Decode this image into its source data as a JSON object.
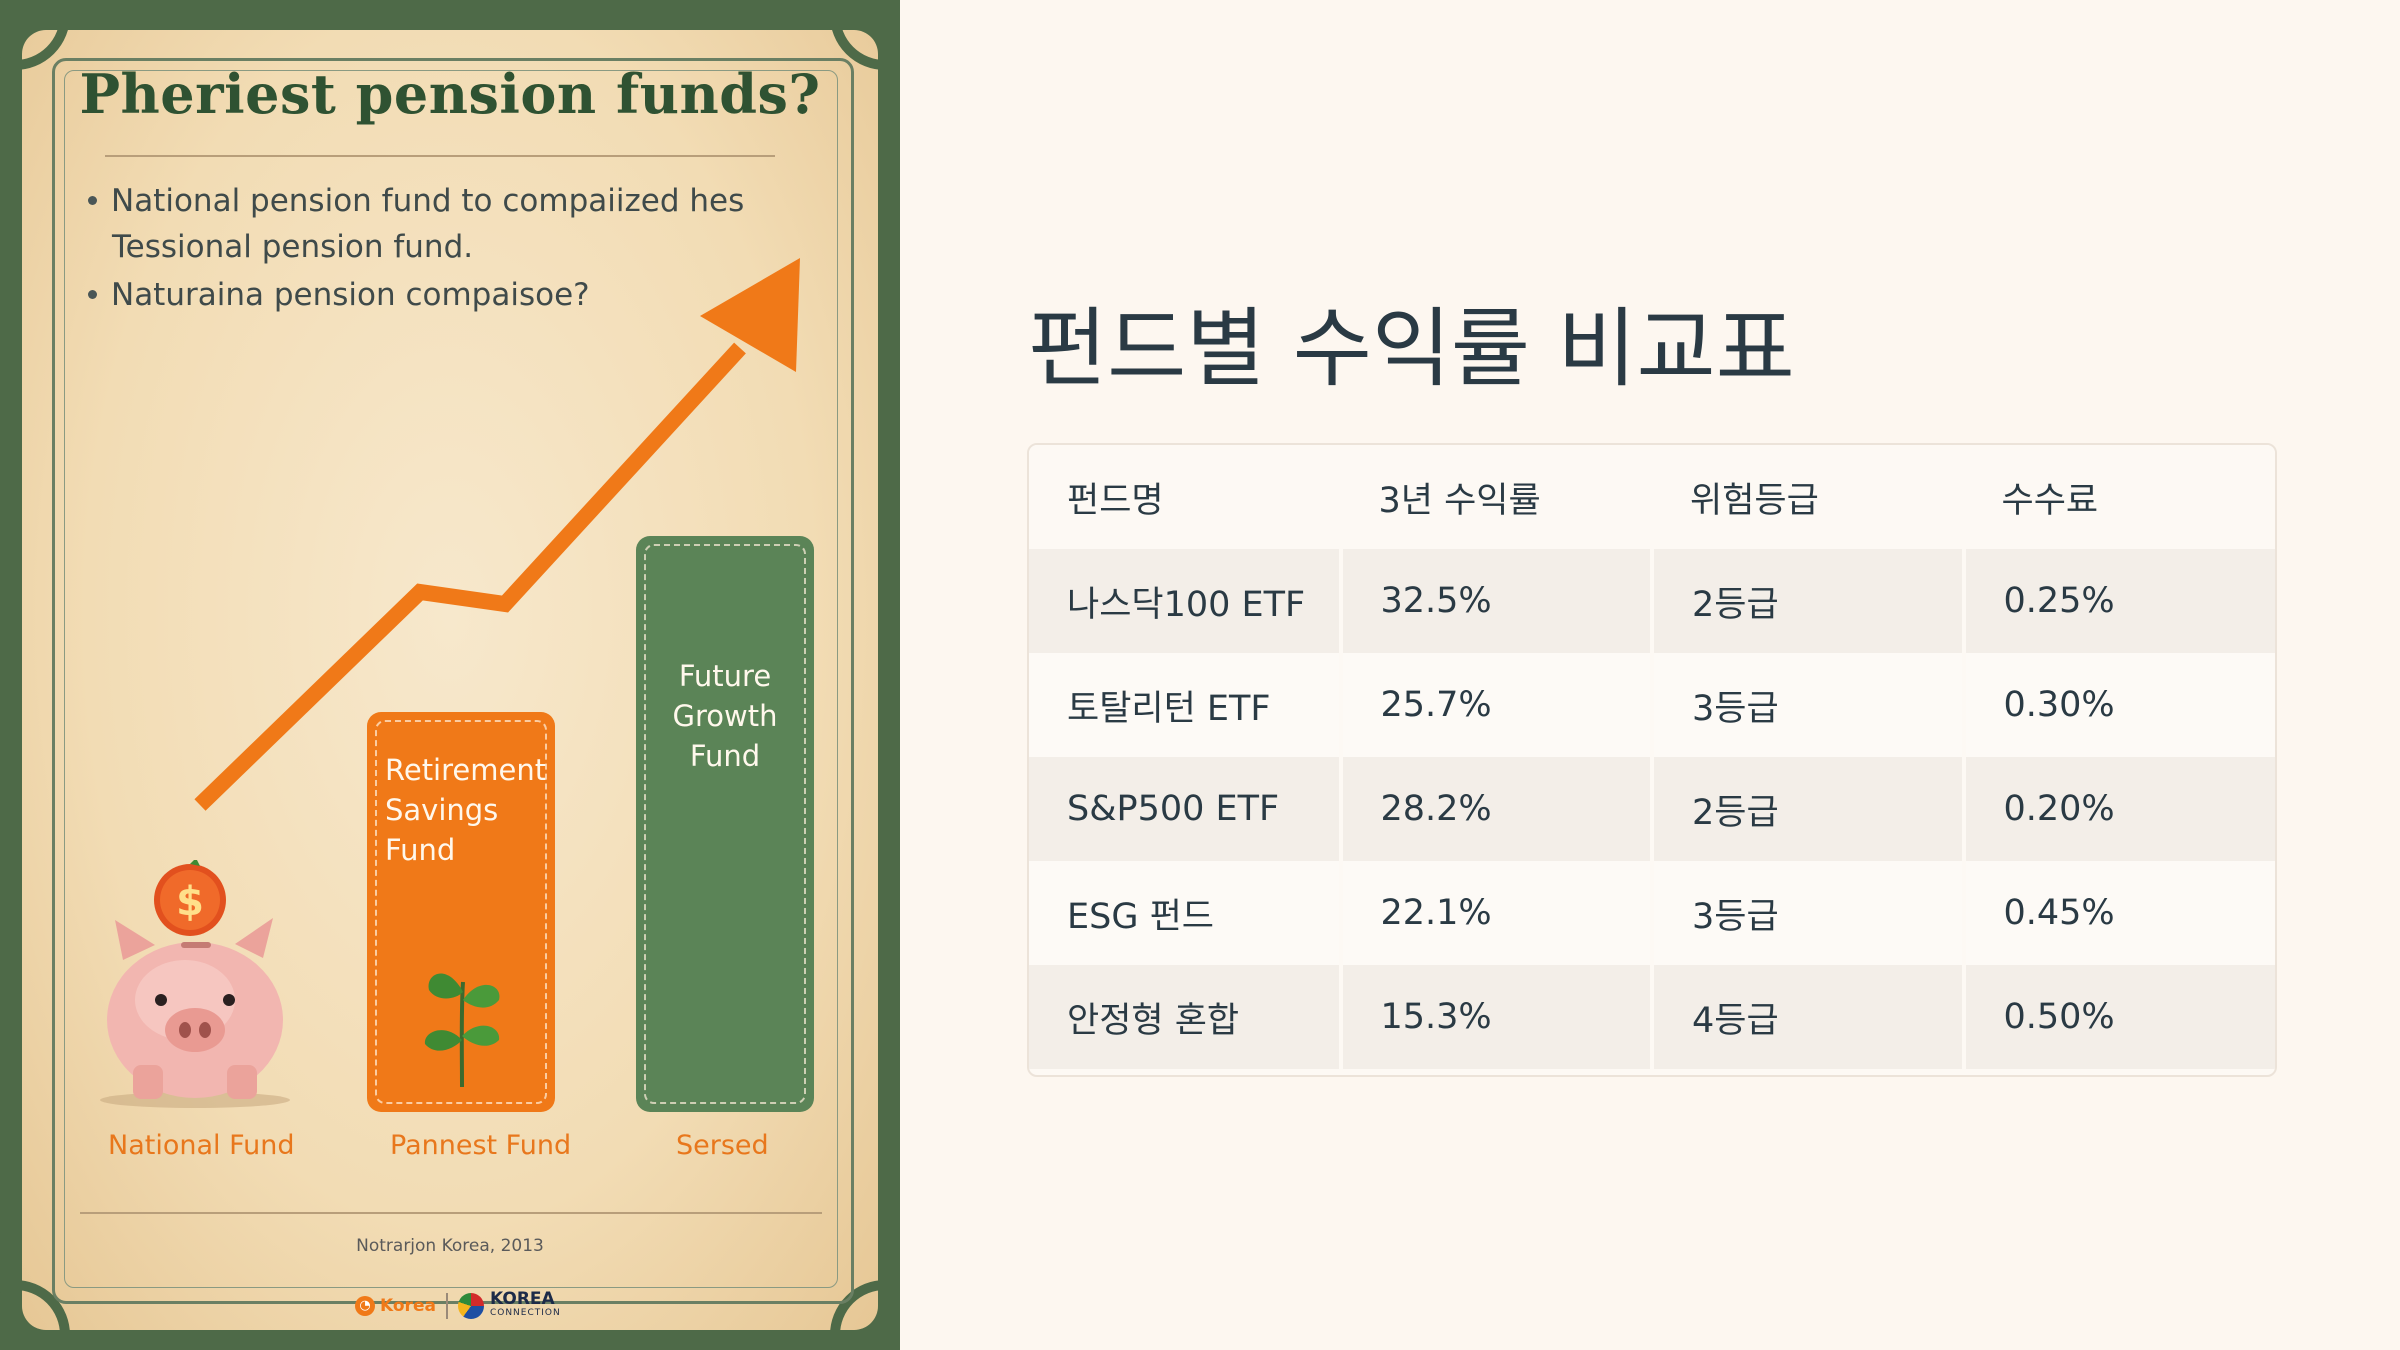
{
  "poster": {
    "title": "Pheriest pension funds?",
    "bullets": [
      {
        "line1": "National pension fund to compaiized hes",
        "line2": "Tessional pension fund."
      },
      {
        "line1": "Naturaina pension compaisoe?",
        "line2": ""
      }
    ],
    "bars": [
      {
        "label": "Retirement Savings Fund",
        "caption": "Pannest Fund",
        "color": "#f07918"
      },
      {
        "label": "Future Growth Fund",
        "caption": "Sersed",
        "color": "#5b8457"
      }
    ],
    "pig_caption": "National Fund",
    "coin_symbol": "$",
    "footer": "Notrarjon Korea, 2013",
    "logos": {
      "left": "Korea",
      "right_big": "KOREA",
      "right_small": "CONNECTION"
    },
    "icons": [
      "piggy-bank-icon",
      "coin-icon",
      "sprout-icon",
      "growth-arrow-icon"
    ]
  },
  "panel": {
    "title": "펀드별 수익률 비교표",
    "columns": [
      "펀드명",
      "3년 수익률",
      "위험등급",
      "수수료"
    ],
    "rows": [
      [
        "나스닥100 ETF",
        "32.5%",
        "2등급",
        "0.25%"
      ],
      [
        "토탈리턴 ETF",
        "25.7%",
        "3등급",
        "0.30%"
      ],
      [
        "S&P500 ETF",
        "28.2%",
        "2등급",
        "0.20%"
      ],
      [
        "ESG 펀드",
        "22.1%",
        "3등급",
        "0.45%"
      ],
      [
        "안정형 혼합",
        "15.3%",
        "4등급",
        "0.50%"
      ]
    ]
  },
  "colors": {
    "background": "#fdf7f0",
    "accent_orange": "#f07918",
    "accent_green": "#5b8457",
    "title_text": "#2a3a44"
  }
}
